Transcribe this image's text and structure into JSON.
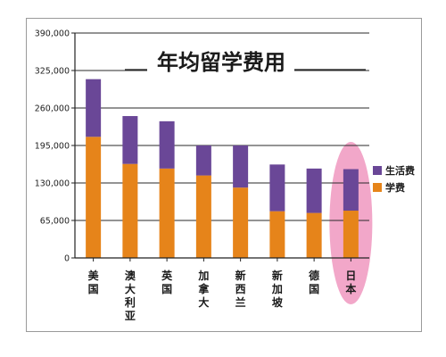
{
  "chart_data": {
    "type": "bar",
    "stacked": true,
    "title": "年均留学费用",
    "categories": [
      "美国",
      "澳大利亚",
      "英国",
      "加拿大",
      "新西兰",
      "新加坡",
      "德国",
      "日本"
    ],
    "series": [
      {
        "name": "学费",
        "color": "#e6841a",
        "values": [
          210000,
          163000,
          155000,
          143000,
          122000,
          81000,
          78000,
          82000
        ]
      },
      {
        "name": "生活费",
        "color": "#6a4797",
        "values": [
          100000,
          83000,
          82000,
          52000,
          73000,
          81000,
          77000,
          72000
        ]
      }
    ],
    "y_ticks": [
      "390,000",
      "325,000",
      "260,000",
      "195,000",
      "130,000",
      "65,000",
      "0"
    ],
    "ylim": [
      0,
      390000
    ],
    "legend_position": "right",
    "highlight_category": "日本",
    "highlight_color": "#f2a7c9",
    "grid": true
  }
}
